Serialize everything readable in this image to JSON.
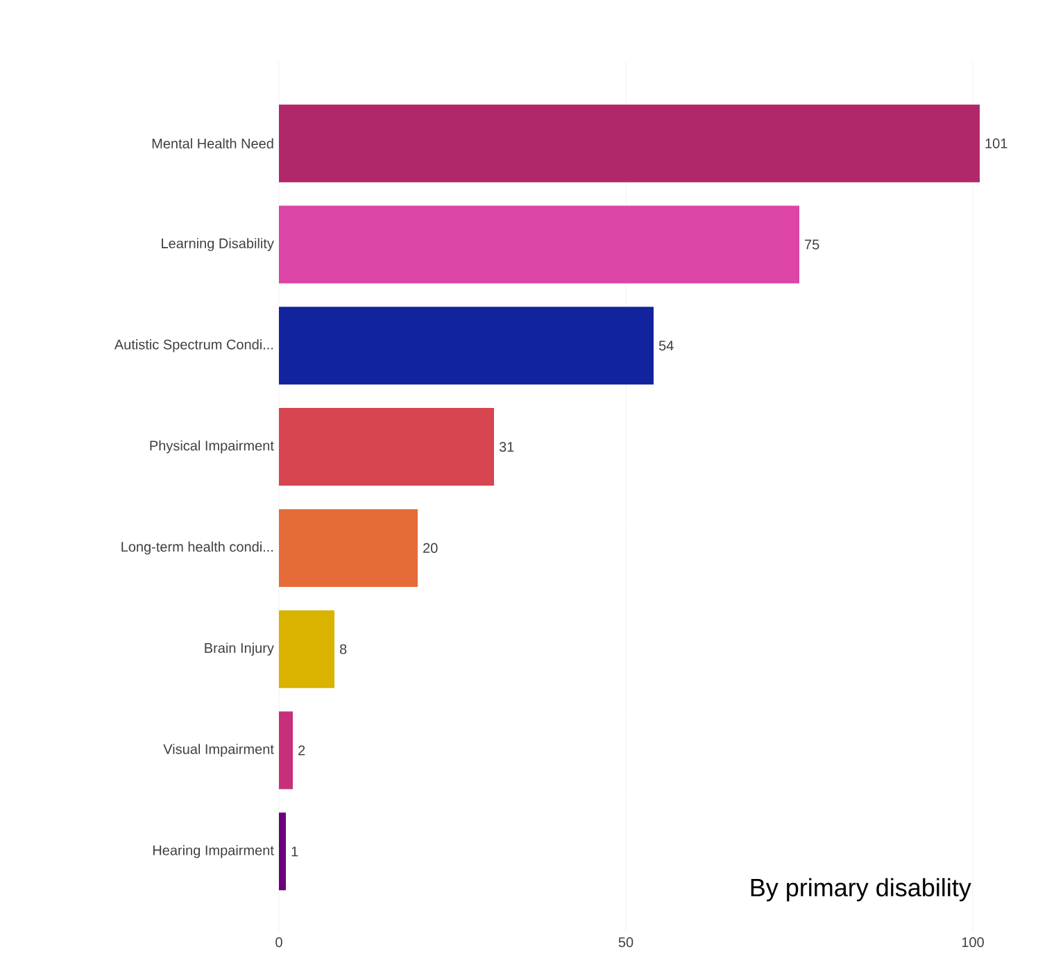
{
  "chart_data": {
    "type": "bar",
    "orientation": "horizontal",
    "categories": [
      "Mental Health Need",
      "Learning Disability",
      "Autistic Spectrum Condi...",
      "Physical Impairment",
      "Long-term health condi...",
      "Brain Injury",
      "Visual Impairment",
      "Hearing Impairment"
    ],
    "values": [
      101,
      75,
      54,
      31,
      20,
      8,
      2,
      1
    ],
    "colors": [
      "#b0286a",
      "#dc44a6",
      "#12239e",
      "#d64550",
      "#e66c37",
      "#d9b300",
      "#c6307a",
      "#6b007b"
    ],
    "xlim": [
      0,
      101
    ],
    "xticks": [
      0,
      50,
      100
    ],
    "grid": "x",
    "data_labels": true,
    "annotations": [
      "By primary disability"
    ]
  }
}
